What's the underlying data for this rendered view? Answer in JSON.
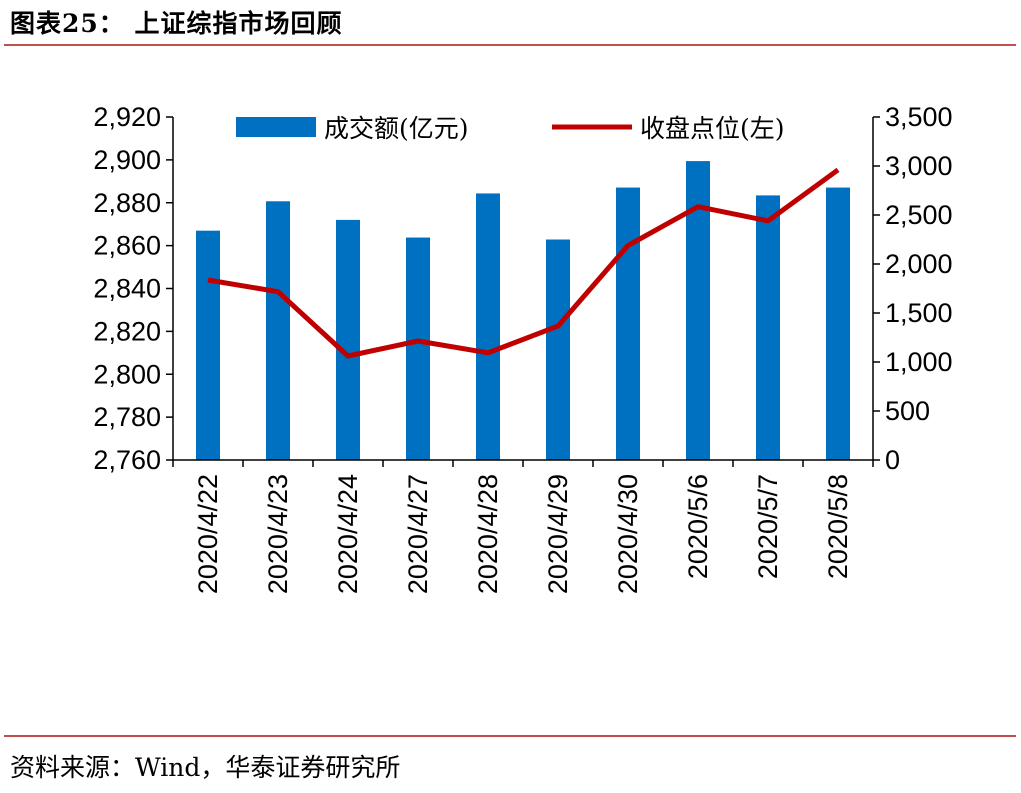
{
  "figure": {
    "title": "图表25：  上证综指市场回顾",
    "source": "资料来源：Wind，华泰证券研究所"
  },
  "chart_data": {
    "type": "bar+line",
    "categories": [
      "2020/4/22",
      "2020/4/23",
      "2020/4/24",
      "2020/4/27",
      "2020/4/28",
      "2020/4/29",
      "2020/4/30",
      "2020/5/6",
      "2020/5/7",
      "2020/5/8"
    ],
    "series": [
      {
        "name": "成交额(亿元)",
        "type": "bar",
        "axis": "right",
        "color": "#0070c0",
        "values": [
          2340,
          2640,
          2450,
          2270,
          2720,
          2250,
          2780,
          3050,
          2700,
          2780
        ]
      },
      {
        "name": "收盘点位(左)",
        "type": "line",
        "axis": "left",
        "color": "#c00000",
        "values": [
          2843.98,
          2838.5,
          2808.53,
          2815.49,
          2810.02,
          2822.44,
          2860.08,
          2878.14,
          2871.52,
          2895.34
        ]
      }
    ],
    "y_left": {
      "min": 2760,
      "max": 2920,
      "step": 20,
      "tick_labels": [
        "2,760",
        "2,780",
        "2,800",
        "2,820",
        "2,840",
        "2,860",
        "2,880",
        "2,900",
        "2,920"
      ]
    },
    "y_right": {
      "min": 0,
      "max": 3500,
      "step": 500,
      "tick_labels": [
        "0",
        "500",
        "1,000",
        "1,500",
        "2,000",
        "2,500",
        "3,000",
        "3,500"
      ]
    },
    "legend_position": "top",
    "grid": false
  }
}
